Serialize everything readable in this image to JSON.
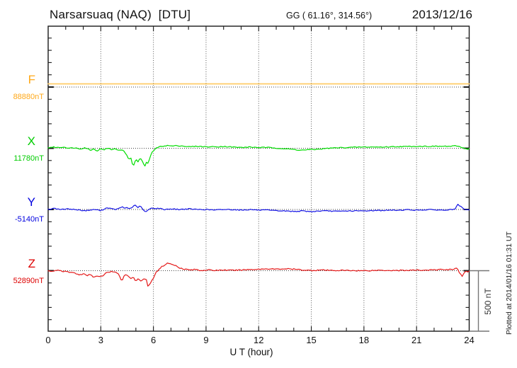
{
  "header": {
    "station": "Narsarsuaq (NAQ)  [DTU]",
    "coordinates": "GG ( 61.16°, 314.56°)",
    "date": "2013/12/16"
  },
  "footer": {
    "xlabel": "U T (hour)",
    "scale_label": "500 nT",
    "plotted_at": "Plotted at 2014/01/16 01:31 UT"
  },
  "chart_data": {
    "type": "line",
    "title": "Narsarsuaq (NAQ) [DTU] magnetogram 2013/12/16",
    "xlabel": "U T (hour)",
    "ylabel": "",
    "units": "nT",
    "x_range": [
      0,
      24
    ],
    "x_ticks": [
      0,
      3,
      6,
      9,
      12,
      15,
      18,
      21,
      24
    ],
    "x_minor_tick_hours": 1,
    "grid": "dotted vertical lines every 3 h; dotted horizontal line at each component baseline; minor y ticks every 100 nT",
    "scale_bar_nT": 500,
    "points_format": "[UT hour, offset in nT from component baseline]",
    "series": [
      {
        "name": "F",
        "baseline_label": "88880nT",
        "baseline_nT": 88880,
        "label_color": "#FFA818",
        "trace_color": "#FFCC66",
        "points": [
          [
            0,
            26
          ],
          [
            24,
            26
          ]
        ]
      },
      {
        "name": "X",
        "baseline_label": "11780nT",
        "baseline_nT": 11780,
        "label_color": "#00CC00",
        "trace_color": "#00DD00",
        "points": [
          [
            0,
            5
          ],
          [
            0.3,
            10
          ],
          [
            0.6,
            5
          ],
          [
            0.9,
            10
          ],
          [
            1.2,
            0
          ],
          [
            1.5,
            5
          ],
          [
            1.8,
            -5
          ],
          [
            2.1,
            5
          ],
          [
            2.4,
            -15
          ],
          [
            2.6,
            -5
          ],
          [
            2.8,
            -20
          ],
          [
            3.0,
            -5
          ],
          [
            3.2,
            -10
          ],
          [
            3.4,
            0
          ],
          [
            3.6,
            -10
          ],
          [
            3.8,
            -5
          ],
          [
            4.0,
            -15
          ],
          [
            4.2,
            -10
          ],
          [
            4.45,
            -45
          ],
          [
            4.6,
            -100
          ],
          [
            4.7,
            -65
          ],
          [
            4.8,
            -125
          ],
          [
            4.9,
            -145
          ],
          [
            5.0,
            -80
          ],
          [
            5.1,
            -115
          ],
          [
            5.2,
            -90
          ],
          [
            5.3,
            -85
          ],
          [
            5.4,
            -120
          ],
          [
            5.5,
            -150
          ],
          [
            5.6,
            -115
          ],
          [
            5.7,
            -130
          ],
          [
            5.8,
            -70
          ],
          [
            5.9,
            -40
          ],
          [
            6.0,
            -20
          ],
          [
            6.1,
            -5
          ],
          [
            6.3,
            10
          ],
          [
            6.5,
            18
          ],
          [
            6.8,
            22
          ],
          [
            7.1,
            18
          ],
          [
            7.4,
            22
          ],
          [
            7.7,
            18
          ],
          [
            8.0,
            12
          ],
          [
            8.5,
            16
          ],
          [
            9.0,
            12
          ],
          [
            9.5,
            12
          ],
          [
            10.0,
            15
          ],
          [
            10.5,
            10
          ],
          [
            11.0,
            6
          ],
          [
            11.5,
            10
          ],
          [
            12.0,
            6
          ],
          [
            12.5,
            6
          ],
          [
            13.0,
            2
          ],
          [
            13.5,
            -4
          ],
          [
            14.0,
            -10
          ],
          [
            14.4,
            -16
          ],
          [
            14.8,
            -12
          ],
          [
            15.2,
            -10
          ],
          [
            15.6,
            -5
          ],
          [
            16.0,
            0
          ],
          [
            16.5,
            4
          ],
          [
            17.0,
            6
          ],
          [
            17.5,
            8
          ],
          [
            18.0,
            10
          ],
          [
            18.5,
            10
          ],
          [
            19.0,
            10
          ],
          [
            19.5,
            12
          ],
          [
            20.0,
            14
          ],
          [
            20.5,
            14
          ],
          [
            21.0,
            16
          ],
          [
            21.5,
            16
          ],
          [
            22.0,
            16
          ],
          [
            22.5,
            16
          ],
          [
            23.0,
            16
          ],
          [
            23.3,
            20
          ],
          [
            23.5,
            10
          ],
          [
            23.7,
            4
          ],
          [
            23.85,
            -8
          ],
          [
            24.0,
            -2
          ]
        ]
      },
      {
        "name": "Y",
        "baseline_label": "-5140nT",
        "baseline_nT": -5140,
        "label_color": "#0000E0",
        "trace_color": "#1515E5",
        "points": [
          [
            0,
            0
          ],
          [
            0.3,
            10
          ],
          [
            0.5,
            5
          ],
          [
            0.8,
            0
          ],
          [
            1.2,
            5
          ],
          [
            1.5,
            0
          ],
          [
            1.8,
            -5
          ],
          [
            2.1,
            -10
          ],
          [
            2.4,
            -5
          ],
          [
            2.7,
            0
          ],
          [
            3.0,
            -10
          ],
          [
            3.2,
            5
          ],
          [
            3.4,
            15
          ],
          [
            3.6,
            5
          ],
          [
            3.8,
            0
          ],
          [
            4.0,
            5
          ],
          [
            4.2,
            22
          ],
          [
            4.35,
            10
          ],
          [
            4.5,
            16
          ],
          [
            4.65,
            6
          ],
          [
            4.8,
            20
          ],
          [
            4.95,
            34
          ],
          [
            5.1,
            16
          ],
          [
            5.25,
            28
          ],
          [
            5.4,
            0
          ],
          [
            5.55,
            -22
          ],
          [
            5.7,
            -6
          ],
          [
            5.9,
            16
          ],
          [
            6.1,
            6
          ],
          [
            6.3,
            10
          ],
          [
            6.6,
            0
          ],
          [
            7.0,
            5
          ],
          [
            7.5,
            0
          ],
          [
            8.0,
            5
          ],
          [
            8.5,
            0
          ],
          [
            9.0,
            0
          ],
          [
            9.5,
            -5
          ],
          [
            10.0,
            0
          ],
          [
            10.5,
            0
          ],
          [
            11.0,
            -5
          ],
          [
            11.5,
            0
          ],
          [
            12.0,
            -5
          ],
          [
            12.5,
            -6
          ],
          [
            13.0,
            -10
          ],
          [
            13.5,
            -12
          ],
          [
            14.0,
            -16
          ],
          [
            14.5,
            -12
          ],
          [
            15.0,
            -18
          ],
          [
            15.5,
            -12
          ],
          [
            16.0,
            -12
          ],
          [
            16.5,
            -16
          ],
          [
            17.0,
            -12
          ],
          [
            17.5,
            -12
          ],
          [
            18.0,
            -12
          ],
          [
            18.5,
            -8
          ],
          [
            19.0,
            -8
          ],
          [
            19.5,
            -6
          ],
          [
            20.0,
            -6
          ],
          [
            20.5,
            -2
          ],
          [
            21.0,
            -6
          ],
          [
            21.5,
            -2
          ],
          [
            22.0,
            -2
          ],
          [
            22.5,
            -6
          ],
          [
            22.9,
            -2
          ],
          [
            23.2,
            4
          ],
          [
            23.35,
            40
          ],
          [
            23.5,
            26
          ],
          [
            23.65,
            6
          ],
          [
            23.8,
            -4
          ],
          [
            24.0,
            -4
          ]
        ]
      },
      {
        "name": "Z",
        "baseline_label": "52890nT",
        "baseline_nT": 52890,
        "label_color": "#DD0000",
        "trace_color": "#E41818",
        "points": [
          [
            0,
            0
          ],
          [
            0.3,
            -6
          ],
          [
            0.6,
            4
          ],
          [
            0.9,
            -6
          ],
          [
            1.2,
            -12
          ],
          [
            1.5,
            -18
          ],
          [
            1.8,
            -36
          ],
          [
            2.0,
            -24
          ],
          [
            2.2,
            -42
          ],
          [
            2.4,
            -30
          ],
          [
            2.6,
            -52
          ],
          [
            2.8,
            -46
          ],
          [
            3.0,
            -52
          ],
          [
            3.2,
            -30
          ],
          [
            3.4,
            -12
          ],
          [
            3.6,
            -6
          ],
          [
            3.8,
            -12
          ],
          [
            4.0,
            -30
          ],
          [
            4.2,
            -82
          ],
          [
            4.35,
            -36
          ],
          [
            4.5,
            -30
          ],
          [
            4.7,
            -70
          ],
          [
            4.85,
            -46
          ],
          [
            5.0,
            -88
          ],
          [
            5.15,
            -58
          ],
          [
            5.3,
            -94
          ],
          [
            5.45,
            -64
          ],
          [
            5.6,
            -76
          ],
          [
            5.7,
            -134
          ],
          [
            5.85,
            -100
          ],
          [
            6.0,
            -58
          ],
          [
            6.1,
            -24
          ],
          [
            6.3,
            12
          ],
          [
            6.5,
            35
          ],
          [
            6.7,
            52
          ],
          [
            6.85,
            64
          ],
          [
            7.0,
            52
          ],
          [
            7.2,
            46
          ],
          [
            7.5,
            24
          ],
          [
            7.8,
            12
          ],
          [
            8.1,
            6
          ],
          [
            8.4,
            10
          ],
          [
            8.7,
            2
          ],
          [
            9.0,
            6
          ],
          [
            9.5,
            2
          ],
          [
            10.0,
            6
          ],
          [
            10.5,
            2
          ],
          [
            11.0,
            6
          ],
          [
            11.5,
            10
          ],
          [
            12.0,
            12
          ],
          [
            12.5,
            16
          ],
          [
            13.0,
            12
          ],
          [
            13.5,
            16
          ],
          [
            14.0,
            12
          ],
          [
            14.5,
            6
          ],
          [
            15.0,
            2
          ],
          [
            15.5,
            6
          ],
          [
            16.0,
            2
          ],
          [
            17.0,
            2
          ],
          [
            18.0,
            0
          ],
          [
            19.0,
            4
          ],
          [
            20.0,
            2
          ],
          [
            21.0,
            4
          ],
          [
            22.0,
            6
          ],
          [
            22.5,
            10
          ],
          [
            23.0,
            10
          ],
          [
            23.3,
            22
          ],
          [
            23.45,
            -18
          ],
          [
            23.6,
            -46
          ],
          [
            23.75,
            -12
          ],
          [
            24.0,
            -4
          ]
        ]
      }
    ]
  }
}
